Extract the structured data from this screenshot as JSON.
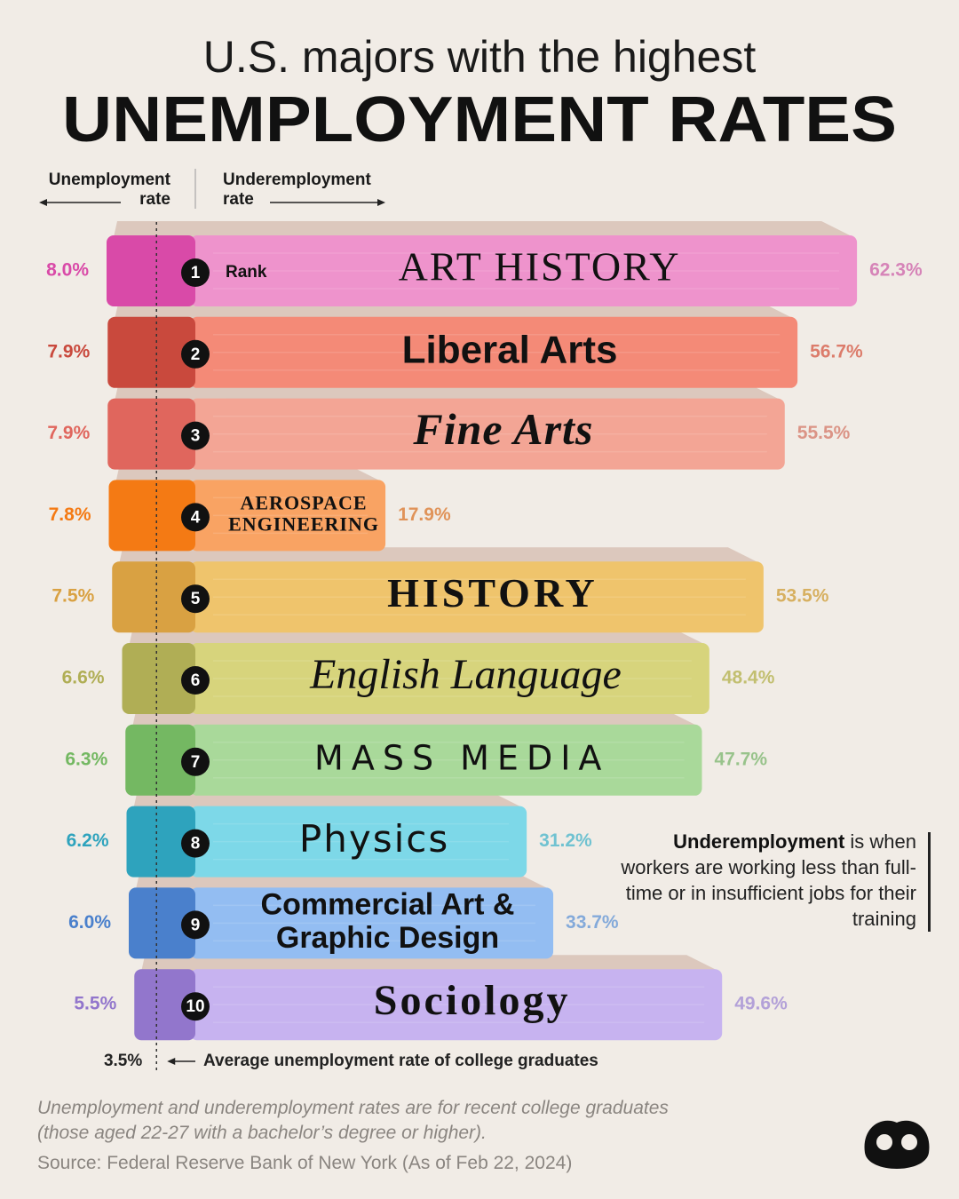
{
  "chart_data": {
    "type": "book-bar",
    "subtitle": "U.S. majors with the highest",
    "title": "UNEMPLOYMENT RATES",
    "left_axis_label": "Unemployment rate",
    "right_axis_label": "Underemployment rate",
    "rank_label": "Rank",
    "ranks": [
      "1",
      "2",
      "3",
      "4",
      "5",
      "6",
      "7",
      "8",
      "9",
      "10"
    ],
    "categories": [
      "ART HISTORY",
      "Liberal Arts",
      "Fine Arts",
      "AEROSPACE ENGINEERING",
      "HISTORY",
      "English Language",
      "MASS MEDIA",
      "Physics",
      "Commercial Art & Graphic Design",
      "Sociology"
    ],
    "series": [
      {
        "name": "Unemployment rate",
        "values": [
          8.0,
          7.9,
          7.9,
          7.8,
          7.5,
          6.6,
          6.3,
          6.2,
          6.0,
          5.5
        ],
        "value_labels": [
          "8.0%",
          "7.9%",
          "7.9%",
          "7.8%",
          "7.5%",
          "6.6%",
          "6.3%",
          "6.2%",
          "6.0%",
          "5.5%"
        ],
        "colors": [
          "#d94aa8",
          "#c9493d",
          "#e0665d",
          "#f47a14",
          "#d9a142",
          "#b0ae55",
          "#74b862",
          "#2ea3bd",
          "#4a80cc",
          "#9276cc"
        ]
      },
      {
        "name": "Underemployment rate",
        "values": [
          62.3,
          56.7,
          55.5,
          17.9,
          53.5,
          48.4,
          47.7,
          31.2,
          33.7,
          49.6
        ],
        "value_labels": [
          "62.3%",
          "56.7%",
          "55.5%",
          "17.9%",
          "53.5%",
          "48.4%",
          "47.7%",
          "31.2%",
          "33.7%",
          "49.6%"
        ],
        "colors": [
          "#ee93cc",
          "#f48a77",
          "#f3a595",
          "#f9a363",
          "#efc46c",
          "#d7d47c",
          "#a9d99a",
          "#7dd8e8",
          "#93bdf2",
          "#c7b3f0"
        ]
      }
    ],
    "reference": {
      "value": 3.5,
      "label": "3.5%",
      "text": "Average unemployment rate of college graduates"
    },
    "note_term": "Underemployment",
    "note_text": "is when workers are working less than full-time or in insufficient jobs for their training",
    "footnote": "Unemployment and underemployment rates are for recent college graduates (those aged 22-27 with a bachelor’s degree or higher).",
    "source": "Source: Federal Reserve Bank of New York (As of Feb 22, 2024)"
  }
}
